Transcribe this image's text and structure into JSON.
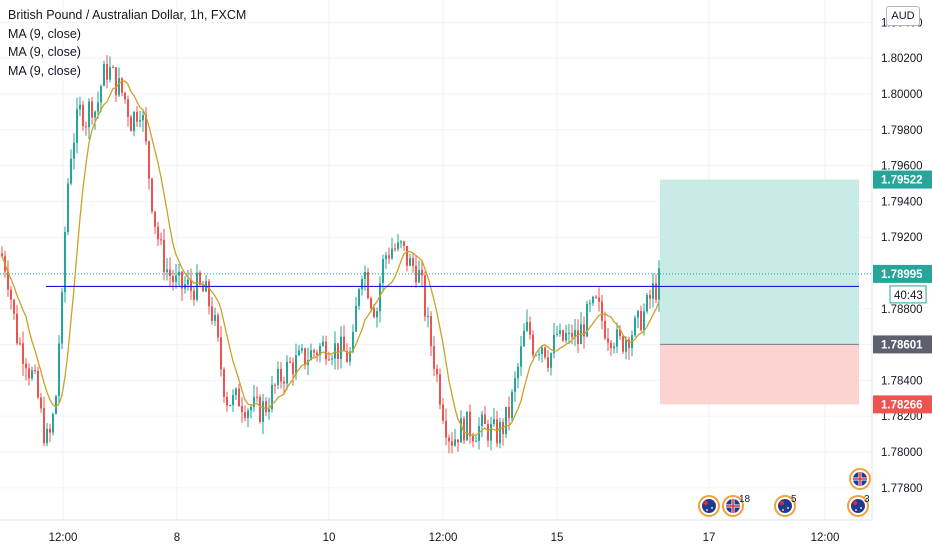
{
  "legend": {
    "title": "British Pound / Australian Dollar, 1h, FXCM",
    "indicators": [
      "MA (9, close)",
      "MA (9, close)",
      "MA (9, close)"
    ]
  },
  "currency_button": "AUD",
  "price_tags": {
    "target": "1.79522",
    "current": "1.78995",
    "countdown": "40:43",
    "entry": "1.78601",
    "stop": "1.78266"
  },
  "colors": {
    "up": "#26a69a",
    "down": "#ef5350",
    "ma": "#c9a227",
    "hline": "#1c1cd4",
    "profit_zone": "#c8ebe6",
    "loss_zone": "#fbd4d2",
    "target_tag": "#26a69a",
    "entry_tag": "#5d606b",
    "stop_tag": "#ef5350",
    "current_line": "#26a69a"
  },
  "event_markers": [
    {
      "icon": "australia-flag-icon",
      "count": ""
    },
    {
      "icon": "uk-flag-icon",
      "count": "18"
    },
    {
      "icon": "australia-flag-icon",
      "count": "5"
    },
    {
      "icon": "uk-flag-icon",
      "count": ""
    },
    {
      "icon": "australia-flag-icon",
      "count": "3"
    }
  ],
  "chart_data": {
    "type": "candlestick",
    "title": "British Pound / Australian Dollar, 1h, FXCM",
    "ylim": [
      1.7763,
      1.8052
    ],
    "y_ticks": [
      "1.77800",
      "1.78000",
      "1.78200",
      "1.78400",
      "1.78600",
      "1.78800",
      "1.79000",
      "1.79200",
      "1.79400",
      "1.79600",
      "1.79800",
      "1.80000",
      "1.80200",
      "1.80400"
    ],
    "x_tick_labels": [
      "12:00",
      "8",
      "10",
      "12:00",
      "15",
      "17",
      "12:00"
    ],
    "horizontal_line": 1.78925,
    "last_price": 1.78995,
    "position": {
      "target": 1.79522,
      "entry": 1.78601,
      "stop": 1.78266
    },
    "price_path": [
      [
        0,
        1.7911
      ],
      [
        4,
        1.7905
      ],
      [
        8,
        1.7895
      ],
      [
        12,
        1.7878
      ],
      [
        16,
        1.7865
      ],
      [
        20,
        1.7858
      ],
      [
        24,
        1.7855
      ],
      [
        28,
        1.7846
      ],
      [
        32,
        1.7842
      ],
      [
        36,
        1.7833
      ],
      [
        40,
        1.782
      ],
      [
        45,
        1.7806
      ],
      [
        50,
        1.781
      ],
      [
        55,
        1.7832
      ],
      [
        58,
        1.7862
      ],
      [
        61,
        1.7882
      ],
      [
        63,
        1.7912
      ],
      [
        66,
        1.7945
      ],
      [
        70,
        1.7968
      ],
      [
        75,
        1.7982
      ],
      [
        80,
        1.7992
      ],
      [
        85,
        1.7986
      ],
      [
        90,
        1.7996
      ],
      [
        95,
        1.799
      ],
      [
        100,
        1.8005
      ],
      [
        105,
        1.8014
      ],
      [
        110,
        1.8012
      ],
      [
        115,
        1.8006
      ],
      [
        120,
        1.8002
      ],
      [
        125,
        1.7996
      ],
      [
        130,
        1.7985
      ],
      [
        135,
        1.799
      ],
      [
        140,
        1.7994
      ],
      [
        145,
        1.797
      ],
      [
        150,
        1.7945
      ],
      [
        155,
        1.7925
      ],
      [
        160,
        1.7912
      ],
      [
        165,
        1.7903
      ],
      [
        170,
        1.7898
      ],
      [
        175,
        1.7894
      ],
      [
        180,
        1.7892
      ],
      [
        185,
        1.7893
      ],
      [
        190,
        1.7891
      ],
      [
        195,
        1.7893
      ],
      [
        200,
        1.789
      ],
      [
        205,
        1.7888
      ],
      [
        210,
        1.788
      ],
      [
        214,
        1.787
      ],
      [
        218,
        1.7855
      ],
      [
        222,
        1.784
      ],
      [
        226,
        1.783
      ],
      [
        232,
        1.7828
      ],
      [
        238,
        1.783
      ],
      [
        245,
        1.7826
      ],
      [
        252,
        1.7825
      ],
      [
        258,
        1.7823
      ],
      [
        265,
        1.7826
      ],
      [
        272,
        1.7834
      ],
      [
        280,
        1.7842
      ],
      [
        288,
        1.7848
      ],
      [
        295,
        1.785
      ],
      [
        302,
        1.7852
      ],
      [
        310,
        1.7855
      ],
      [
        318,
        1.7858
      ],
      [
        326,
        1.786
      ],
      [
        334,
        1.7858
      ],
      [
        342,
        1.7856
      ],
      [
        348,
        1.7852
      ],
      [
        352,
        1.786
      ],
      [
        356,
        1.7885
      ],
      [
        360,
        1.7905
      ],
      [
        364,
        1.79
      ],
      [
        368,
        1.789
      ],
      [
        372,
        1.7882
      ],
      [
        376,
        1.788
      ],
      [
        380,
        1.79
      ],
      [
        384,
        1.791
      ],
      [
        388,
        1.7912
      ],
      [
        392,
        1.7915
      ],
      [
        396,
        1.7912
      ],
      [
        400,
        1.7914
      ],
      [
        404,
        1.791
      ],
      [
        408,
        1.7905
      ],
      [
        412,
        1.7904
      ],
      [
        416,
        1.7902
      ],
      [
        420,
        1.7895
      ],
      [
        424,
        1.788
      ],
      [
        428,
        1.7866
      ],
      [
        432,
        1.7855
      ],
      [
        436,
        1.7842
      ],
      [
        440,
        1.783
      ],
      [
        444,
        1.7818
      ],
      [
        448,
        1.781
      ],
      [
        452,
        1.7807
      ],
      [
        458,
        1.7812
      ],
      [
        465,
        1.7815
      ],
      [
        472,
        1.7812
      ],
      [
        480,
        1.7814
      ],
      [
        488,
        1.7812
      ],
      [
        496,
        1.781
      ],
      [
        502,
        1.7814
      ],
      [
        508,
        1.7822
      ],
      [
        512,
        1.7832
      ],
      [
        516,
        1.7844
      ],
      [
        520,
        1.7855
      ],
      [
        524,
        1.7868
      ],
      [
        528,
        1.7868
      ],
      [
        532,
        1.786
      ],
      [
        536,
        1.7858
      ],
      [
        540,
        1.7862
      ],
      [
        544,
        1.7858
      ],
      [
        548,
        1.7852
      ],
      [
        552,
        1.7858
      ],
      [
        556,
        1.7866
      ],
      [
        560,
        1.786
      ],
      [
        564,
        1.7865
      ],
      [
        568,
        1.7862
      ],
      [
        572,
        1.7868
      ],
      [
        576,
        1.786
      ],
      [
        580,
        1.7868
      ],
      [
        584,
        1.7872
      ],
      [
        588,
        1.7878
      ],
      [
        592,
        1.788
      ],
      [
        596,
        1.7882
      ],
      [
        600,
        1.7875
      ],
      [
        604,
        1.787
      ],
      [
        608,
        1.7866
      ],
      [
        612,
        1.7866
      ],
      [
        616,
        1.7862
      ],
      [
        620,
        1.786
      ],
      [
        624,
        1.7864
      ],
      [
        628,
        1.7866
      ],
      [
        632,
        1.7868
      ],
      [
        636,
        1.787
      ],
      [
        640,
        1.7875
      ],
      [
        644,
        1.7878
      ],
      [
        648,
        1.7884
      ],
      [
        652,
        1.789
      ],
      [
        656,
        1.7892
      ],
      [
        660,
        1.78995
      ]
    ]
  }
}
